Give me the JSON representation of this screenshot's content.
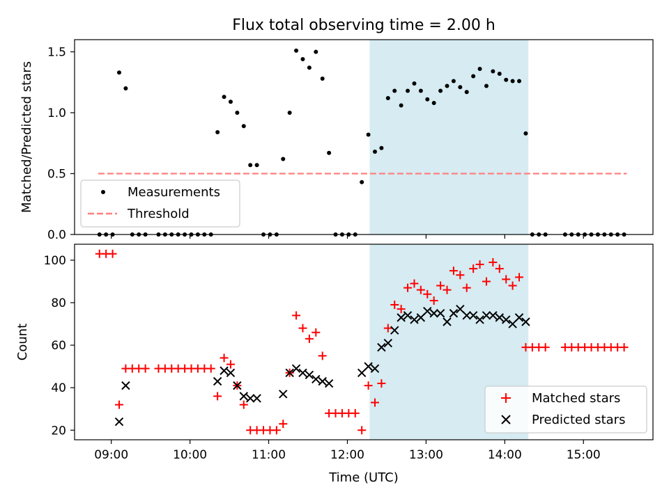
{
  "figure": {
    "title": "Flux total observing time = 2.00 h",
    "highlight_color": "#add8e6"
  },
  "chart_data": [
    {
      "type": "scatter",
      "title": "Flux total observing time = 2.00 h",
      "xlabel": "",
      "ylabel": "Matched/Predicted stars",
      "xlim": [
        "08:32",
        "15:53"
      ],
      "ylim": [
        0,
        1.6
      ],
      "yticks": [
        0.0,
        0.5,
        1.0,
        1.5
      ],
      "ytick_labels": [
        "0.0",
        "0.5",
        "1.0",
        "1.5"
      ],
      "highlight_span": [
        "12:17",
        "14:18"
      ],
      "grid": false,
      "legend_position": "lower-left",
      "legend": [
        "Measurements",
        "Threshold"
      ],
      "threshold": {
        "name": "Threshold",
        "value": 0.5,
        "x_range": [
          "08:50",
          "15:33"
        ],
        "color": "#ff7f7f",
        "style": "dashed"
      },
      "series": [
        {
          "name": "Measurements",
          "color": "#000000",
          "marker": "dot",
          "points": [
            [
              "08:51",
              0.0
            ],
            [
              "08:56",
              0.0
            ],
            [
              "09:01",
              0.0
            ],
            [
              "09:06",
              1.33
            ],
            [
              "09:11",
              1.2
            ],
            [
              "09:16",
              0.0
            ],
            [
              "09:21",
              0.0
            ],
            [
              "09:26",
              0.0
            ],
            [
              "09:36",
              0.0
            ],
            [
              "09:41",
              0.0
            ],
            [
              "09:46",
              0.0
            ],
            [
              "09:51",
              0.0
            ],
            [
              "09:56",
              0.0
            ],
            [
              "10:01",
              0.0
            ],
            [
              "10:06",
              0.0
            ],
            [
              "10:11",
              0.0
            ],
            [
              "10:16",
              0.0
            ],
            [
              "10:21",
              0.84
            ],
            [
              "10:26",
              1.13
            ],
            [
              "10:31",
              1.09
            ],
            [
              "10:36",
              1.0
            ],
            [
              "10:41",
              0.89
            ],
            [
              "10:46",
              0.57
            ],
            [
              "10:51",
              0.57
            ],
            [
              "10:56",
              0.0
            ],
            [
              "11:01",
              0.0
            ],
            [
              "11:06",
              0.0
            ],
            [
              "11:11",
              0.62
            ],
            [
              "11:16",
              1.0
            ],
            [
              "11:21",
              1.51
            ],
            [
              "11:26",
              1.44
            ],
            [
              "11:31",
              1.37
            ],
            [
              "11:36",
              1.5
            ],
            [
              "11:41",
              1.28
            ],
            [
              "11:46",
              0.67
            ],
            [
              "11:51",
              0.0
            ],
            [
              "11:56",
              0.0
            ],
            [
              "12:01",
              0.0
            ],
            [
              "12:06",
              0.0
            ],
            [
              "12:11",
              0.43
            ],
            [
              "12:16",
              0.82
            ],
            [
              "12:21",
              0.68
            ],
            [
              "12:26",
              0.71
            ],
            [
              "12:31",
              1.12
            ],
            [
              "12:36",
              1.18
            ],
            [
              "12:41",
              1.06
            ],
            [
              "12:46",
              1.18
            ],
            [
              "12:51",
              1.24
            ],
            [
              "12:56",
              1.18
            ],
            [
              "13:01",
              1.11
            ],
            [
              "13:06",
              1.08
            ],
            [
              "13:11",
              1.18
            ],
            [
              "13:16",
              1.22
            ],
            [
              "13:21",
              1.26
            ],
            [
              "13:26",
              1.21
            ],
            [
              "13:31",
              1.17
            ],
            [
              "13:36",
              1.3
            ],
            [
              "13:41",
              1.36
            ],
            [
              "13:46",
              1.22
            ],
            [
              "13:51",
              1.34
            ],
            [
              "13:56",
              1.32
            ],
            [
              "14:01",
              1.27
            ],
            [
              "14:06",
              1.26
            ],
            [
              "14:11",
              1.26
            ],
            [
              "14:16",
              0.83
            ],
            [
              "14:21",
              0.0
            ],
            [
              "14:26",
              0.0
            ],
            [
              "14:31",
              0.0
            ],
            [
              "14:46",
              0.0
            ],
            [
              "14:51",
              0.0
            ],
            [
              "14:56",
              0.0
            ],
            [
              "15:01",
              0.0
            ],
            [
              "15:06",
              0.0
            ],
            [
              "15:11",
              0.0
            ],
            [
              "15:16",
              0.0
            ],
            [
              "15:21",
              0.0
            ],
            [
              "15:26",
              0.0
            ],
            [
              "15:31",
              0.0
            ]
          ]
        }
      ]
    },
    {
      "type": "scatter",
      "xlabel": "Time (UTC)",
      "ylabel": "Count",
      "xlim": [
        "08:32",
        "15:53"
      ],
      "xticks": [
        "09:00",
        "10:00",
        "11:00",
        "12:00",
        "13:00",
        "14:00",
        "15:00"
      ],
      "xtick_labels": [
        "09:00",
        "10:00",
        "11:00",
        "12:00",
        "13:00",
        "14:00",
        "15:00"
      ],
      "ylim": [
        15.5,
        107.5
      ],
      "yticks": [
        20,
        40,
        60,
        80,
        100
      ],
      "ytick_labels": [
        "20",
        "40",
        "60",
        "80",
        "100"
      ],
      "highlight_span": [
        "12:17",
        "14:18"
      ],
      "grid": false,
      "legend_position": "lower-right",
      "legend": [
        "Matched stars",
        "Predicted stars"
      ],
      "series": [
        {
          "name": "Matched stars",
          "color": "#ff0000",
          "marker": "plus",
          "points": [
            [
              "08:51",
              103
            ],
            [
              "08:56",
              103
            ],
            [
              "09:01",
              103
            ],
            [
              "09:06",
              32
            ],
            [
              "09:11",
              49
            ],
            [
              "09:16",
              49
            ],
            [
              "09:21",
              49
            ],
            [
              "09:26",
              49
            ],
            [
              "09:36",
              49
            ],
            [
              "09:41",
              49
            ],
            [
              "09:46",
              49
            ],
            [
              "09:51",
              49
            ],
            [
              "09:56",
              49
            ],
            [
              "10:01",
              49
            ],
            [
              "10:06",
              49
            ],
            [
              "10:11",
              49
            ],
            [
              "10:16",
              49
            ],
            [
              "10:21",
              36
            ],
            [
              "10:26",
              54
            ],
            [
              "10:31",
              51
            ],
            [
              "10:36",
              41
            ],
            [
              "10:41",
              32
            ],
            [
              "10:46",
              20
            ],
            [
              "10:51",
              20
            ],
            [
              "10:56",
              20
            ],
            [
              "11:01",
              20
            ],
            [
              "11:06",
              20
            ],
            [
              "11:11",
              23
            ],
            [
              "11:16",
              47
            ],
            [
              "11:21",
              74
            ],
            [
              "11:26",
              68
            ],
            [
              "11:31",
              63
            ],
            [
              "11:36",
              66
            ],
            [
              "11:41",
              55
            ],
            [
              "11:46",
              28
            ],
            [
              "11:51",
              28
            ],
            [
              "11:56",
              28
            ],
            [
              "12:01",
              28
            ],
            [
              "12:06",
              28
            ],
            [
              "12:11",
              20
            ],
            [
              "12:16",
              41
            ],
            [
              "12:21",
              33
            ],
            [
              "12:26",
              42
            ],
            [
              "12:31",
              68
            ],
            [
              "12:36",
              79
            ],
            [
              "12:41",
              77
            ],
            [
              "12:46",
              87
            ],
            [
              "12:51",
              89
            ],
            [
              "12:56",
              86
            ],
            [
              "13:01",
              84
            ],
            [
              "13:06",
              81
            ],
            [
              "13:11",
              88
            ],
            [
              "13:16",
              86
            ],
            [
              "13:21",
              95
            ],
            [
              "13:26",
              93
            ],
            [
              "13:31",
              87
            ],
            [
              "13:36",
              96
            ],
            [
              "13:41",
              98
            ],
            [
              "13:46",
              90
            ],
            [
              "13:51",
              99
            ],
            [
              "13:56",
              96
            ],
            [
              "14:01",
              91
            ],
            [
              "14:06",
              88
            ],
            [
              "14:11",
              92
            ],
            [
              "14:16",
              59
            ],
            [
              "14:21",
              59
            ],
            [
              "14:26",
              59
            ],
            [
              "14:31",
              59
            ],
            [
              "14:46",
              59
            ],
            [
              "14:51",
              59
            ],
            [
              "14:56",
              59
            ],
            [
              "15:01",
              59
            ],
            [
              "15:06",
              59
            ],
            [
              "15:11",
              59
            ],
            [
              "15:16",
              59
            ],
            [
              "15:21",
              59
            ],
            [
              "15:26",
              59
            ],
            [
              "15:31",
              59
            ]
          ]
        },
        {
          "name": "Predicted stars",
          "color": "#000000",
          "marker": "x",
          "points": [
            [
              "09:06",
              24
            ],
            [
              "09:11",
              41
            ],
            [
              "10:21",
              43
            ],
            [
              "10:26",
              48
            ],
            [
              "10:31",
              47
            ],
            [
              "10:36",
              41
            ],
            [
              "10:41",
              36
            ],
            [
              "10:46",
              35
            ],
            [
              "10:51",
              35
            ],
            [
              "11:11",
              37
            ],
            [
              "11:16",
              47
            ],
            [
              "11:21",
              49
            ],
            [
              "11:26",
              47
            ],
            [
              "11:31",
              46
            ],
            [
              "11:36",
              44
            ],
            [
              "11:41",
              43
            ],
            [
              "11:46",
              42
            ],
            [
              "12:11",
              47
            ],
            [
              "12:16",
              50
            ],
            [
              "12:21",
              49
            ],
            [
              "12:26",
              59
            ],
            [
              "12:31",
              61
            ],
            [
              "12:36",
              67
            ],
            [
              "12:41",
              73
            ],
            [
              "12:46",
              74
            ],
            [
              "12:51",
              72
            ],
            [
              "12:56",
              73
            ],
            [
              "13:01",
              76
            ],
            [
              "13:06",
              75
            ],
            [
              "13:11",
              75
            ],
            [
              "13:16",
              71
            ],
            [
              "13:21",
              75
            ],
            [
              "13:26",
              77
            ],
            [
              "13:31",
              74
            ],
            [
              "13:36",
              74
            ],
            [
              "13:41",
              72
            ],
            [
              "13:46",
              74
            ],
            [
              "13:51",
              74
            ],
            [
              "13:56",
              73
            ],
            [
              "14:01",
              72
            ],
            [
              "14:06",
              70
            ],
            [
              "14:11",
              73
            ],
            [
              "14:16",
              71
            ]
          ]
        }
      ]
    }
  ]
}
